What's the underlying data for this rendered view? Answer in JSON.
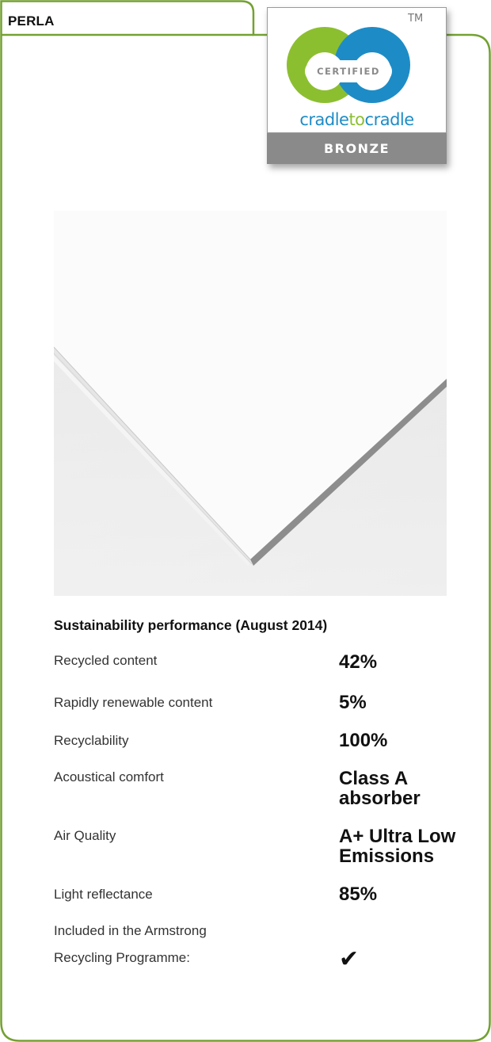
{
  "tab": {
    "label": "PERLA"
  },
  "certification": {
    "trademark": "TM",
    "seal_text": "CERTIFIED",
    "brand_part1": "cradle",
    "brand_part2": "to",
    "brand_part3": "cradle",
    "level": "BRONZE",
    "colors": {
      "green": "#8cbf30",
      "blue": "#1d8cc6",
      "grey": "#8a8a8a"
    }
  },
  "frame_color": "#74a132",
  "product_image": {
    "description_icon": "ceiling-tile-photo"
  },
  "sustainability": {
    "title": "Sustainability performance (August 2014)",
    "rows": [
      {
        "label": "Recycled content",
        "value": "42%"
      },
      {
        "label": "Rapidly renewable content",
        "value": "5%"
      },
      {
        "label": "Recyclability",
        "value": "100%"
      },
      {
        "label": "Acoustical comfort",
        "value_line1": "Class A",
        "value_line2": "absorber"
      },
      {
        "label": "Air Quality",
        "value_line1": "A+ Ultra Low",
        "value_line2": "Emissions"
      },
      {
        "label": "Light reflectance",
        "value": "85%"
      },
      {
        "label_line1": "Included in the Armstrong",
        "label_line2": "Recycling Programme:",
        "value": "✔"
      }
    ]
  }
}
